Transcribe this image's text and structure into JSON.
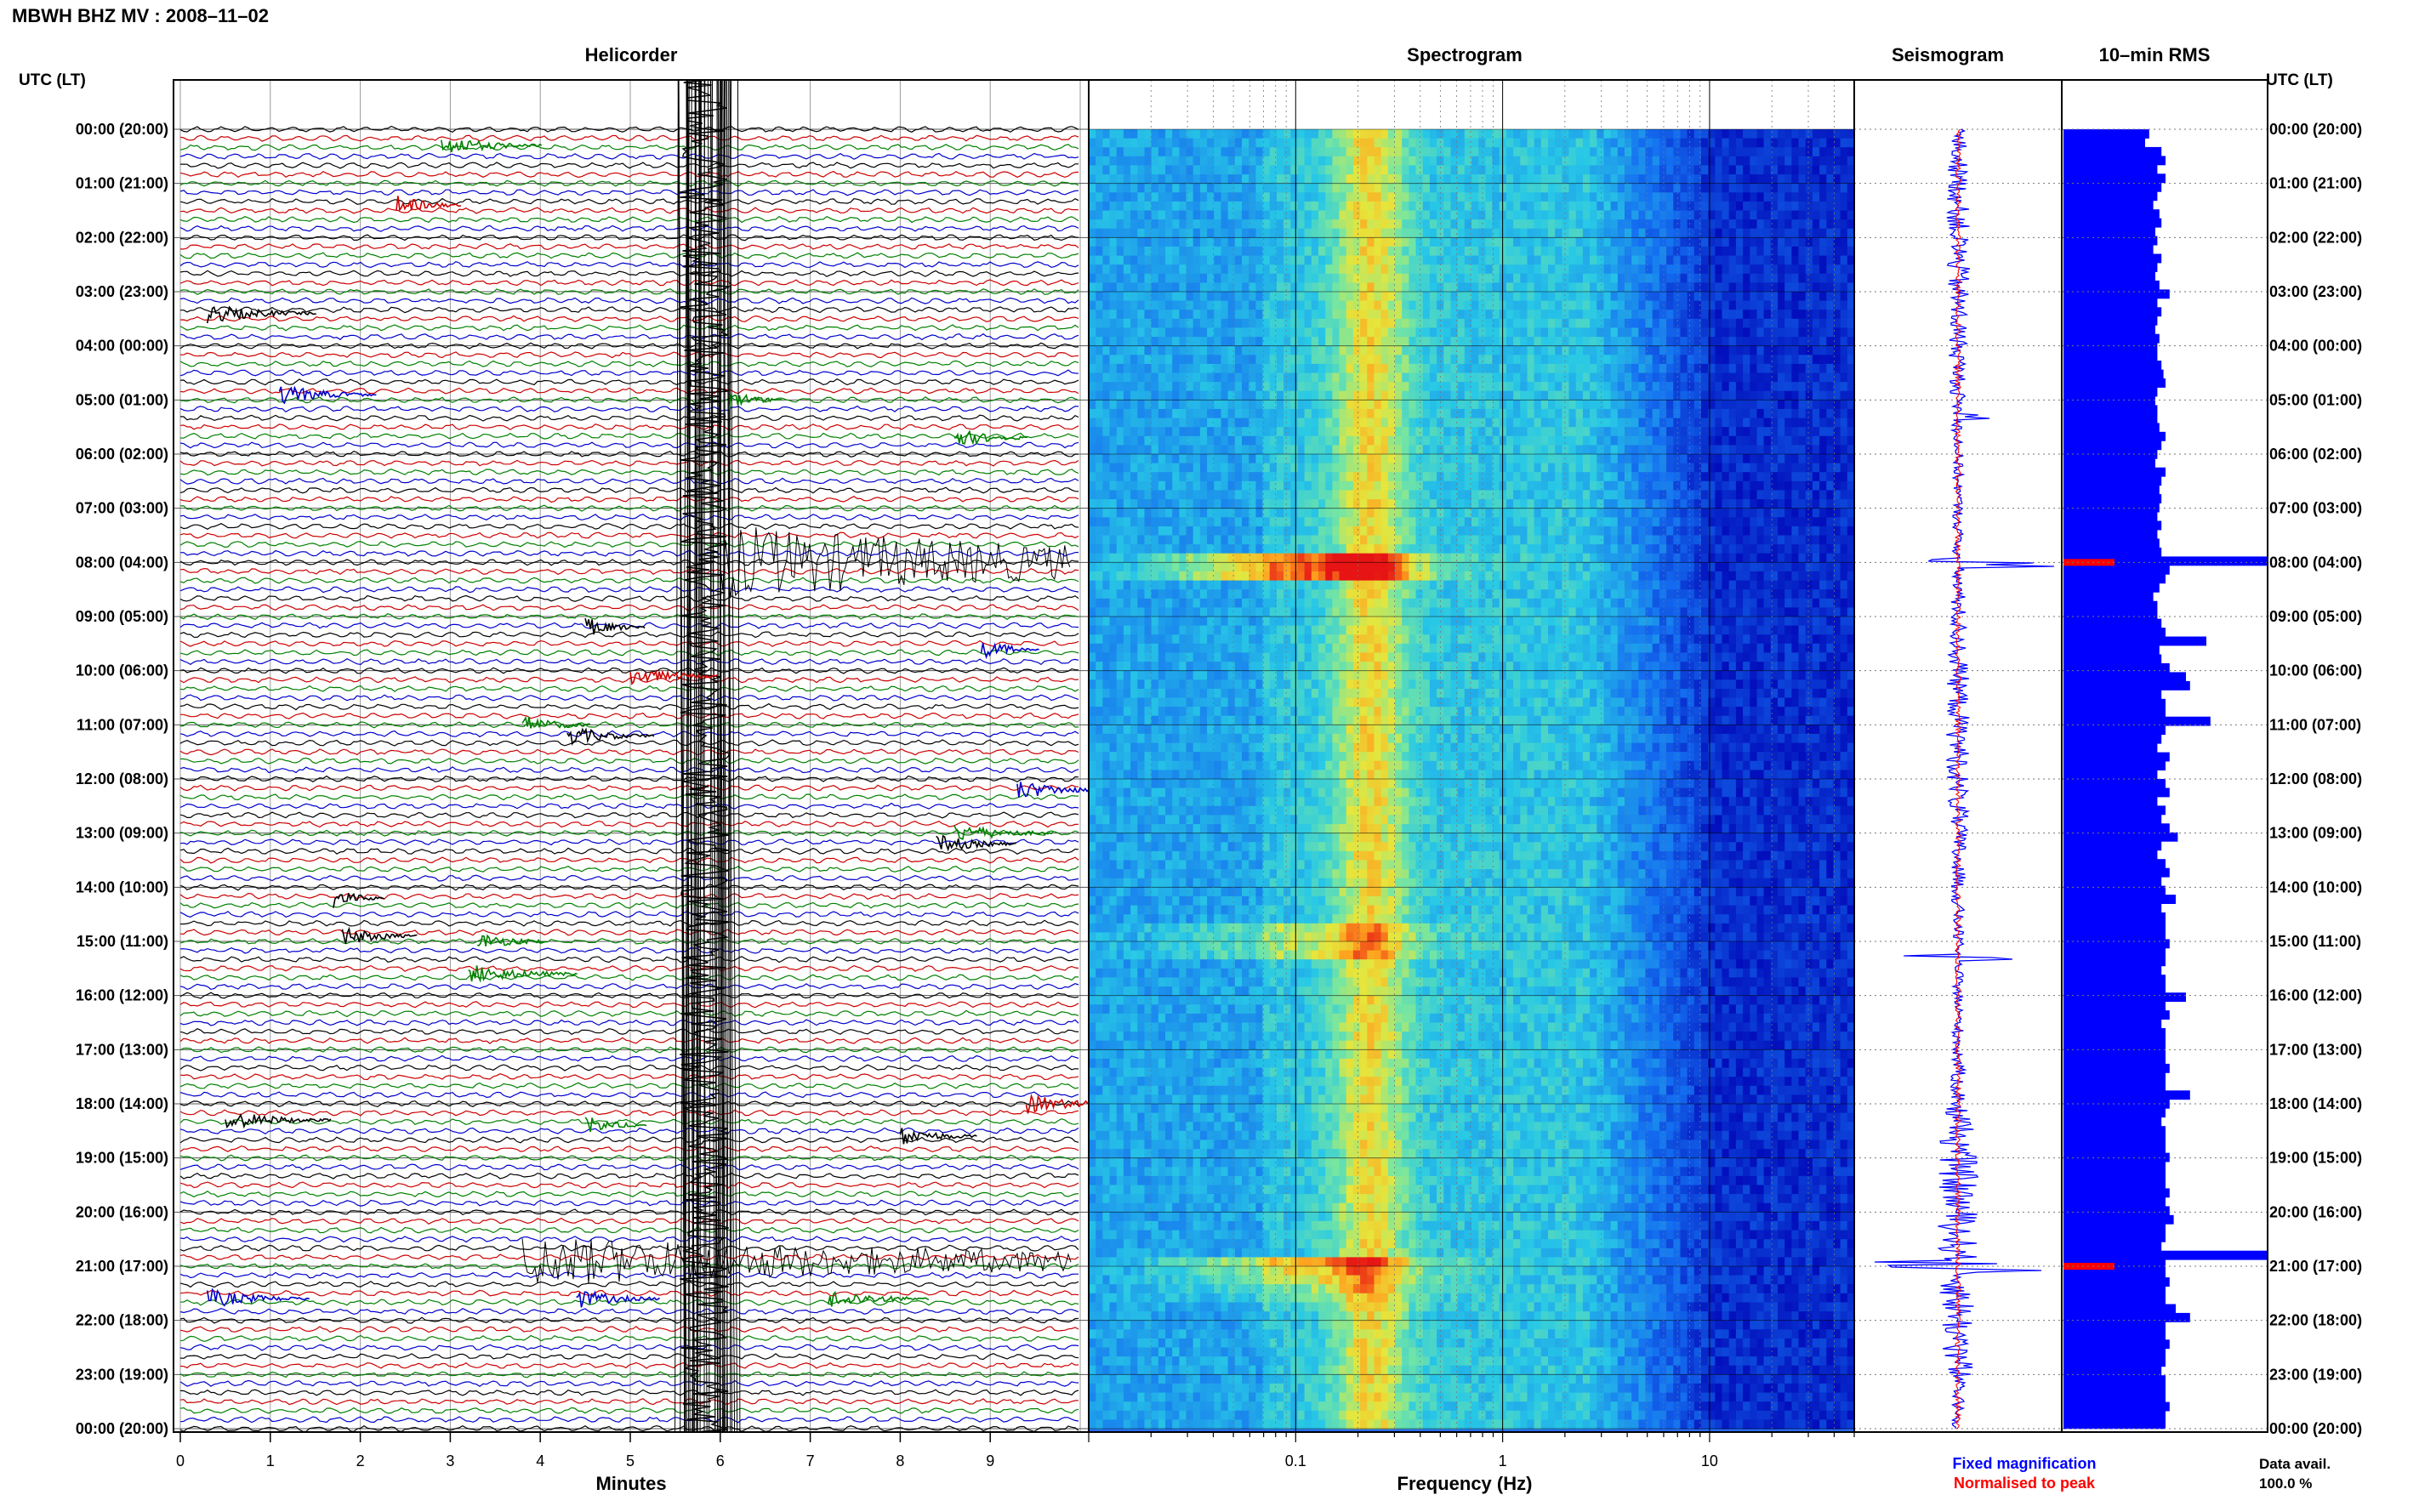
{
  "header": {
    "title": "MBWH BHZ MV : 2008–11–02",
    "utc_label_left": "UTC (LT)",
    "utc_label_right": "UTC (LT)"
  },
  "panels": {
    "helicorder": {
      "title": "Helicorder",
      "xlabel": "Minutes"
    },
    "spectrogram": {
      "title": "Spectrogram",
      "xlabel": "Frequency (Hz)"
    },
    "seismogram": {
      "title": "Seismogram",
      "legend": [
        "Fixed magnification",
        "Normalised to peak"
      ]
    },
    "rms": {
      "title": "10–min RMS",
      "footer_label": "Data avail.",
      "footer_value": "100.0 %"
    }
  },
  "colors": {
    "trace_cycle": [
      "#000000",
      "#cc0000",
      "#008000",
      "#0000cc"
    ],
    "seismogram_fixed": "#0000ff",
    "seismogram_normalised": "#ff0000",
    "rms_fill": "#0000ff",
    "rms_peak": "#ff0000",
    "spectrogram_low": "#0000b4",
    "spectrogram_high": "#ff0000"
  },
  "chart_data": [
    {
      "type": "line",
      "name": "helicorder",
      "title": "Helicorder",
      "xlabel": "Minutes",
      "x_ticks": [
        "0",
        "1",
        "2",
        "3",
        "4",
        "5",
        "6",
        "7",
        "8",
        "9"
      ],
      "xlim": [
        0,
        10
      ],
      "hour_labels": [
        "00:00 (20:00)",
        "01:00 (21:00)",
        "02:00 (22:00)",
        "03:00 (23:00)",
        "04:00 (00:00)",
        "05:00 (01:00)",
        "06:00 (02:00)",
        "07:00 (03:00)",
        "08:00 (04:00)",
        "09:00 (05:00)",
        "10:00 (06:00)",
        "11:00 (07:00)",
        "12:00 (08:00)",
        "13:00 (09:00)",
        "14:00 (10:00)",
        "15:00 (11:00)",
        "16:00 (12:00)",
        "17:00 (13:00)",
        "18:00 (14:00)",
        "19:00 (15:00)",
        "20:00 (16:00)",
        "21:00 (17:00)",
        "22:00 (18:00)",
        "23:00 (19:00)",
        "00:00 (20:00)"
      ],
      "traces_per_hour": 6
    },
    {
      "type": "heatmap",
      "name": "spectrogram",
      "title": "Spectrogram",
      "xlabel": "Frequency (Hz)",
      "x_scale": "log",
      "x_tick_labels": [
        "0.1",
        "1",
        "10"
      ],
      "xlim": [
        0.01,
        50
      ]
    },
    {
      "type": "line",
      "name": "seismogram",
      "title": "Seismogram",
      "series": [
        {
          "name": "Fixed magnification"
        },
        {
          "name": "Normalised to peak"
        }
      ]
    },
    {
      "type": "bar",
      "name": "rms",
      "title": "10–min RMS",
      "orientation": "horizontal",
      "peak_hours": [
        8.0,
        21.0
      ],
      "values_relative": [
        0.42,
        0.4,
        0.48,
        0.5,
        0.46,
        0.5,
        0.48,
        0.46,
        0.44,
        0.47,
        0.48,
        0.45,
        0.46,
        0.44,
        0.48,
        0.46,
        0.45,
        0.47,
        0.52,
        0.46,
        0.48,
        0.46,
        0.45,
        0.47,
        0.46,
        0.46,
        0.48,
        0.49,
        0.5,
        0.46,
        0.45,
        0.46,
        0.46,
        0.47,
        0.5,
        0.48,
        0.46,
        0.45,
        0.5,
        0.48,
        0.47,
        0.48,
        0.47,
        0.46,
        0.48,
        0.46,
        0.47,
        0.48,
        1.0,
        0.52,
        0.5,
        0.47,
        0.44,
        0.46,
        0.46,
        0.48,
        0.5,
        0.7,
        0.47,
        0.48,
        0.52,
        0.6,
        0.62,
        0.48,
        0.5,
        0.5,
        0.72,
        0.5,
        0.48,
        0.46,
        0.52,
        0.5,
        0.46,
        0.5,
        0.52,
        0.46,
        0.5,
        0.48,
        0.52,
        0.56,
        0.48,
        0.46,
        0.5,
        0.52,
        0.48,
        0.5,
        0.55,
        0.48,
        0.5,
        0.5,
        0.5,
        0.52,
        0.5,
        0.5,
        0.48,
        0.5,
        0.5,
        0.6,
        0.5,
        0.52,
        0.48,
        0.5,
        0.5,
        0.5,
        0.5,
        0.52,
        0.5,
        0.5,
        0.62,
        0.52,
        0.5,
        0.48,
        0.5,
        0.5,
        0.5,
        0.52,
        0.5,
        0.5,
        0.5,
        0.52,
        0.5,
        0.52,
        0.54,
        0.5,
        0.5,
        0.48,
        1.0,
        0.5,
        0.5,
        0.52,
        0.5,
        0.5,
        0.55,
        0.62,
        0.5,
        0.5,
        0.52,
        0.5,
        0.5,
        0.48,
        0.5,
        0.5,
        0.5,
        0.52,
        0.5,
        0.5
      ]
    }
  ]
}
